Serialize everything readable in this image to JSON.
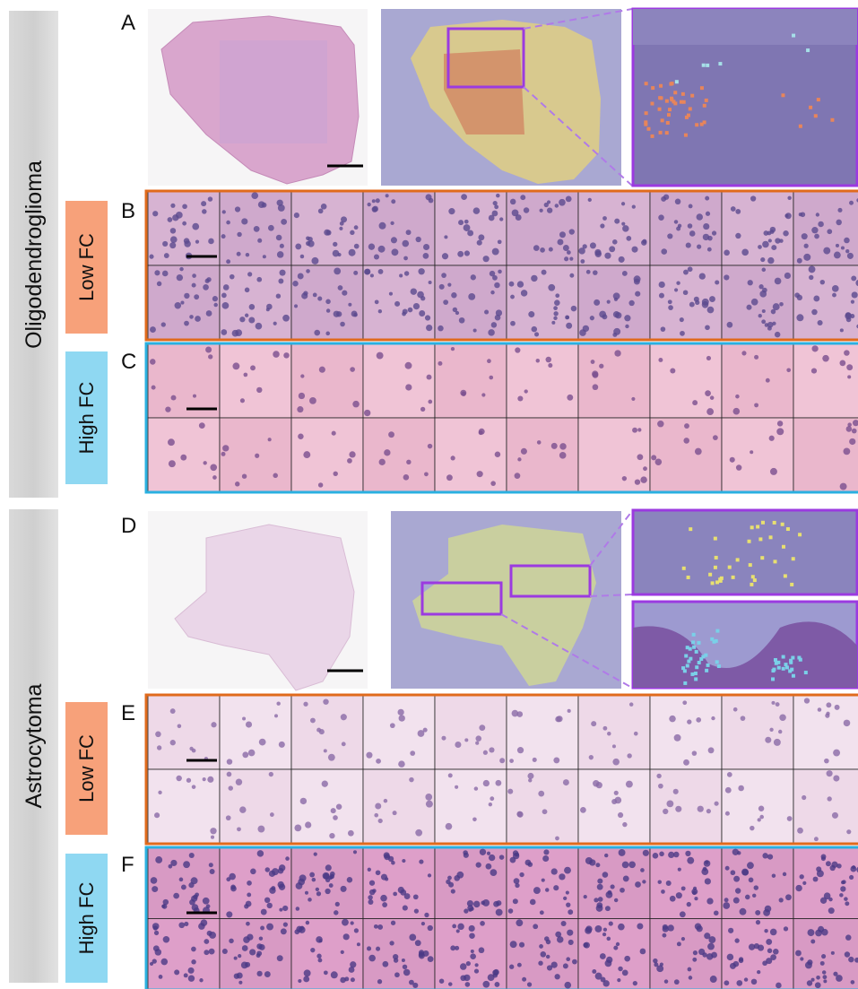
{
  "groups": [
    {
      "label": "Oligodendroglioma",
      "panels": [
        {
          "letter": "A"
        },
        {
          "letter": "B",
          "tag": "Low FC"
        },
        {
          "letter": "C",
          "tag": "High FC"
        }
      ]
    },
    {
      "label": "Astrocytoma",
      "panels": [
        {
          "letter": "D"
        },
        {
          "letter": "E",
          "tag": "Low FC"
        },
        {
          "letter": "F",
          "tag": "High FC"
        }
      ]
    }
  ]
}
